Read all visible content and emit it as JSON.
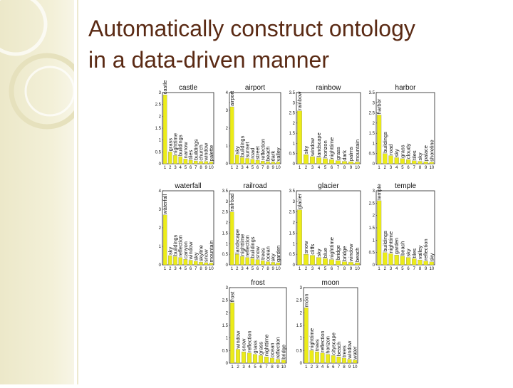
{
  "slide": {
    "title_line1": "Automatically construct ontology",
    "title_line2": "in a data-driven manner"
  },
  "colors": {
    "bar": "#ecec18",
    "title": "#5a2a14"
  },
  "chart_data": [
    {
      "type": "bar",
      "title": "castle",
      "categories": [
        "1",
        "2",
        "3",
        "4",
        "5",
        "6",
        "7",
        "8",
        "9",
        "10"
      ],
      "values": [
        2.9,
        0.5,
        0.35,
        0.3,
        0.2,
        0.15,
        0.12,
        0.1,
        0.1,
        0.08
      ],
      "labels": [
        "castle",
        "grass",
        "nighttime",
        "buildings",
        "narrow",
        "tiles",
        "buildings",
        "church",
        "window",
        "palette"
      ],
      "ylim": [
        0,
        3
      ],
      "yticks": [
        0,
        0.5,
        1,
        1.5,
        2,
        2.5,
        3
      ]
    },
    {
      "type": "bar",
      "title": "airport",
      "categories": [
        "1",
        "2",
        "3",
        "4",
        "5",
        "6",
        "7",
        "8",
        "9",
        "10"
      ],
      "values": [
        3.2,
        0.5,
        0.35,
        0.3,
        0.25,
        0.2,
        0.15,
        0.12,
        0.1,
        0.1
      ],
      "labels": [
        "airport",
        "sky",
        "buildings",
        "sunset",
        "road",
        "street",
        "reflection",
        "beach",
        "dark",
        "valley"
      ],
      "ylim": [
        0,
        4
      ],
      "yticks": [
        0,
        1,
        2,
        3,
        4
      ]
    },
    {
      "type": "bar",
      "title": "rainbow",
      "categories": [
        "1",
        "2",
        "3",
        "4",
        "5",
        "6",
        "7",
        "8",
        "9",
        "10"
      ],
      "values": [
        2.6,
        0.45,
        0.35,
        0.3,
        0.25,
        0.2,
        0.15,
        0.12,
        0.1,
        0.08
      ],
      "labels": [
        "rainbow",
        "sky",
        "window",
        "landscape",
        "horizon",
        "nighttime",
        "grass",
        "dark",
        "palms",
        "mountain"
      ],
      "ylim": [
        0,
        3.5
      ],
      "yticks": [
        0,
        0.5,
        1,
        1.5,
        2,
        2.5,
        3,
        3.5
      ]
    },
    {
      "type": "bar",
      "title": "harbor",
      "categories": [
        "1",
        "2",
        "3",
        "4",
        "5",
        "6",
        "7",
        "8",
        "9",
        "10"
      ],
      "values": [
        2.4,
        0.5,
        0.4,
        0.3,
        0.25,
        0.2,
        0.15,
        0.12,
        0.1,
        0.08
      ],
      "labels": [
        "harbor",
        "buildings",
        "road",
        "sky",
        "grass",
        "cloudy",
        "tiles",
        "sky",
        "palace",
        "shoreline"
      ],
      "ylim": [
        0,
        3.5
      ],
      "yticks": [
        0,
        0.5,
        1,
        1.5,
        2,
        2.5,
        3,
        3.5
      ]
    },
    {
      "type": "bar",
      "title": "waterfall",
      "categories": [
        "1",
        "2",
        "3",
        "4",
        "5",
        "6",
        "7",
        "8",
        "9",
        "10"
      ],
      "values": [
        2.7,
        0.5,
        0.45,
        0.4,
        0.3,
        0.25,
        0.2,
        0.15,
        0.12,
        0.1
      ],
      "labels": [
        "waterfall",
        "sky",
        "buildings",
        "reflection",
        "canyon",
        "window",
        "sky",
        "skyline",
        "snow",
        "mountain"
      ],
      "ylim": [
        0,
        4
      ],
      "yticks": [
        0,
        1,
        2,
        3,
        4
      ]
    },
    {
      "type": "bar",
      "title": "railroad",
      "categories": [
        "1",
        "2",
        "3",
        "4",
        "5",
        "6",
        "7",
        "8",
        "9",
        "10"
      ],
      "values": [
        2.5,
        0.5,
        0.4,
        0.35,
        0.3,
        0.25,
        0.2,
        0.15,
        0.12,
        0.1
      ],
      "labels": [
        "railroad",
        "landscape",
        "nighttime",
        "reflection",
        "buildings",
        "snow",
        "trees",
        "ocean",
        "sky",
        "garden"
      ],
      "ylim": [
        0,
        3.5
      ],
      "yticks": [
        0,
        0.5,
        1,
        1.5,
        2,
        2.5,
        3,
        3.5
      ]
    },
    {
      "type": "bar",
      "title": "glacier",
      "categories": [
        "1",
        "2",
        "3",
        "4",
        "5",
        "6",
        "7",
        "8",
        "9",
        "10"
      ],
      "values": [
        2.6,
        0.5,
        0.45,
        0.35,
        0.3,
        0.25,
        0.2,
        0.15,
        0.12,
        0.1
      ],
      "labels": [
        "glacier",
        "snow",
        "cliffs",
        "sky",
        "blue",
        "nighttime",
        "bridge",
        "bridge",
        "window",
        "beach"
      ],
      "ylim": [
        0,
        3.5
      ],
      "yticks": [
        0,
        0.5,
        1,
        1.5,
        2,
        2.5,
        3,
        3.5
      ]
    },
    {
      "type": "bar",
      "title": "temple",
      "categories": [
        "1",
        "2",
        "3",
        "4",
        "5",
        "6",
        "7",
        "8",
        "9",
        "10"
      ],
      "values": [
        2.6,
        0.5,
        0.45,
        0.4,
        0.35,
        0.3,
        0.25,
        0.2,
        0.15,
        0.12
      ],
      "labels": [
        "temple",
        "buildings",
        "nighttime",
        "garden",
        "beach",
        "sky",
        "tiles",
        "valley",
        "reflection",
        "sky"
      ],
      "ylim": [
        0,
        3
      ],
      "yticks": [
        0,
        0.5,
        1,
        1.5,
        2,
        2.5,
        3
      ]
    },
    {
      "type": "bar",
      "title": "frost",
      "categories": [
        "1",
        "2",
        "3",
        "4",
        "5",
        "6",
        "7",
        "8",
        "9",
        "10"
      ],
      "values": [
        2.4,
        0.55,
        0.45,
        0.4,
        0.35,
        0.3,
        0.25,
        0.2,
        0.15,
        0.12
      ],
      "labels": [
        "frost",
        "window",
        "snow",
        "reflection",
        "grass",
        "grass",
        "nighttime",
        "ocean",
        "reflection",
        "bridge"
      ],
      "ylim": [
        0,
        3
      ],
      "yticks": [
        0,
        0.5,
        1,
        1.5,
        2,
        2.5,
        3
      ]
    },
    {
      "type": "bar",
      "title": "moon",
      "categories": [
        "1",
        "2",
        "3",
        "4",
        "5",
        "6",
        "7",
        "8",
        "9",
        "10"
      ],
      "values": [
        2.2,
        0.5,
        0.45,
        0.4,
        0.35,
        0.3,
        0.25,
        0.2,
        0.15,
        0.12
      ],
      "labels": [
        "moon",
        "nighttime",
        "trees",
        "reflection",
        "horizon",
        "cityscape",
        "beach",
        "trees",
        "window",
        "water"
      ],
      "ylim": [
        0,
        3
      ],
      "yticks": [
        0,
        0.5,
        1,
        1.5,
        2,
        2.5,
        3
      ]
    }
  ]
}
